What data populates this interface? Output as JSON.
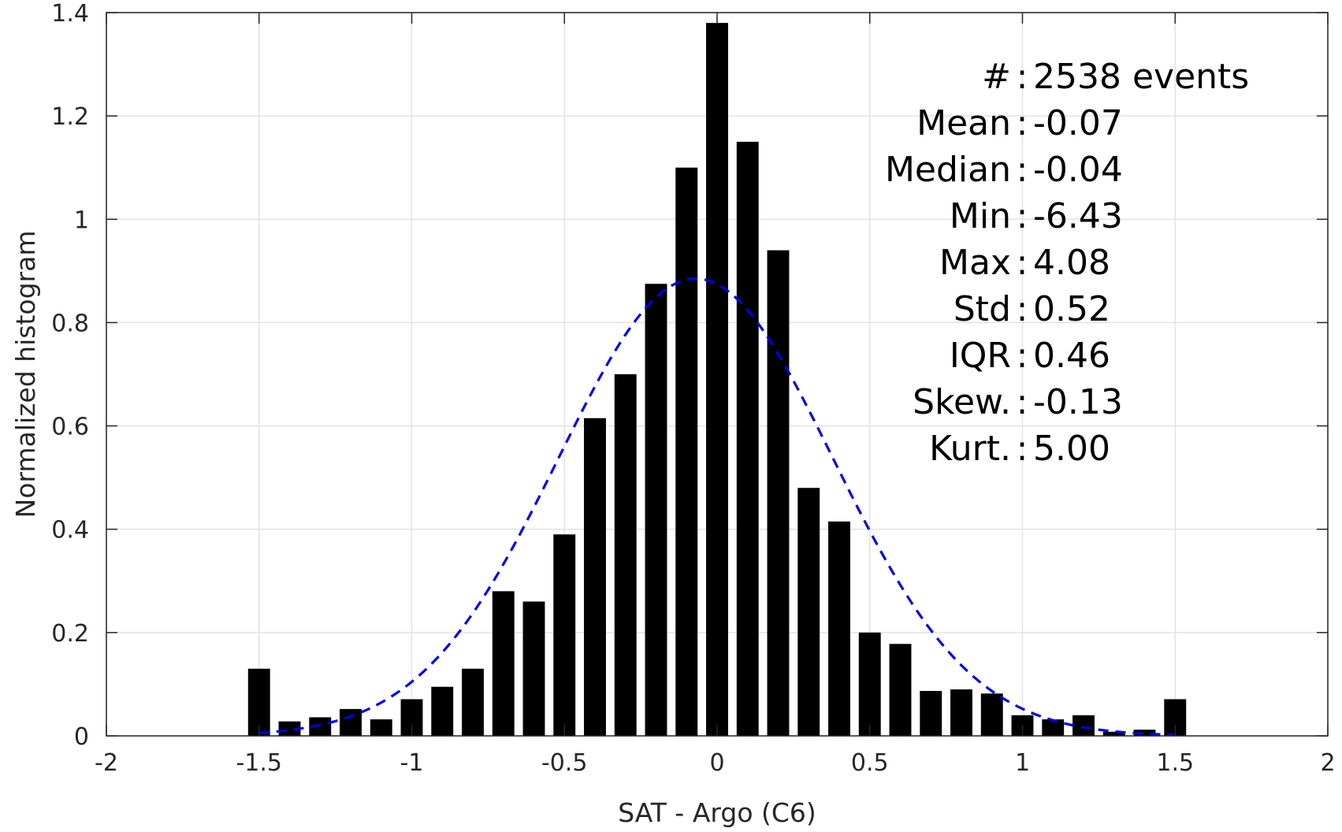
{
  "chart_data": {
    "type": "bar",
    "xlabel": "SAT - Argo (C6)",
    "ylabel": "Normalized histogram",
    "xlim": [
      -2,
      2
    ],
    "ylim": [
      0,
      1.4
    ],
    "xticks": [
      -2,
      -1.5,
      -1,
      -0.5,
      0,
      0.5,
      1,
      1.5,
      2
    ],
    "xtick_labels": [
      "-2",
      "-1.5",
      "-1",
      "-0.5",
      "0",
      "0.5",
      "1",
      "1.5",
      "2"
    ],
    "yticks": [
      0,
      0.2,
      0.4,
      0.6,
      0.8,
      1,
      1.2,
      1.4
    ],
    "ytick_labels": [
      "0",
      "0.2",
      "0.4",
      "0.6",
      "0.8",
      "1",
      "1.2",
      "1.4"
    ],
    "grid": true,
    "bar_color": "#000000",
    "bin_width": 0.1,
    "bins": {
      "x": [
        -1.5,
        -1.4,
        -1.3,
        -1.2,
        -1.1,
        -1.0,
        -0.9,
        -0.8,
        -0.7,
        -0.6,
        -0.5,
        -0.4,
        -0.3,
        -0.2,
        -0.1,
        0.0,
        0.1,
        0.2,
        0.3,
        0.4,
        0.5,
        0.6,
        0.7,
        0.8,
        0.9,
        1.0,
        1.1,
        1.2,
        1.3,
        1.4,
        1.5
      ],
      "values": [
        0.13,
        0.028,
        0.036,
        0.052,
        0.032,
        0.071,
        0.095,
        0.13,
        0.28,
        0.26,
        0.39,
        0.615,
        0.7,
        0.875,
        1.1,
        1.38,
        1.15,
        0.94,
        0.48,
        0.415,
        0.2,
        0.178,
        0.087,
        0.09,
        0.082,
        0.04,
        0.032,
        0.04,
        0.008,
        0.012,
        0.071
      ]
    },
    "fit_curve": {
      "style": "dashed",
      "color": "#0000ee",
      "mean": -0.07,
      "std": 0.45,
      "peak": 0.885,
      "x_range": [
        -1.5,
        1.5
      ]
    },
    "annotations": [
      {
        "label": "#",
        "sep": ":",
        "value": "2538 events"
      },
      {
        "label": "Mean",
        "sep": ":",
        "value": "-0.07"
      },
      {
        "label": "Median",
        "sep": ":",
        "value": "-0.04"
      },
      {
        "label": "Min",
        "sep": ":",
        "value": "-6.43"
      },
      {
        "label": "Max",
        "sep": ":",
        "value": "4.08"
      },
      {
        "label": "Std",
        "sep": ":",
        "value": "0.52"
      },
      {
        "label": "IQR",
        "sep": ":",
        "value": "0.46"
      },
      {
        "label": "Skew.",
        "sep": ":",
        "value": "-0.13"
      },
      {
        "label": "Kurt.",
        "sep": ":",
        "value": "5.00"
      }
    ]
  }
}
